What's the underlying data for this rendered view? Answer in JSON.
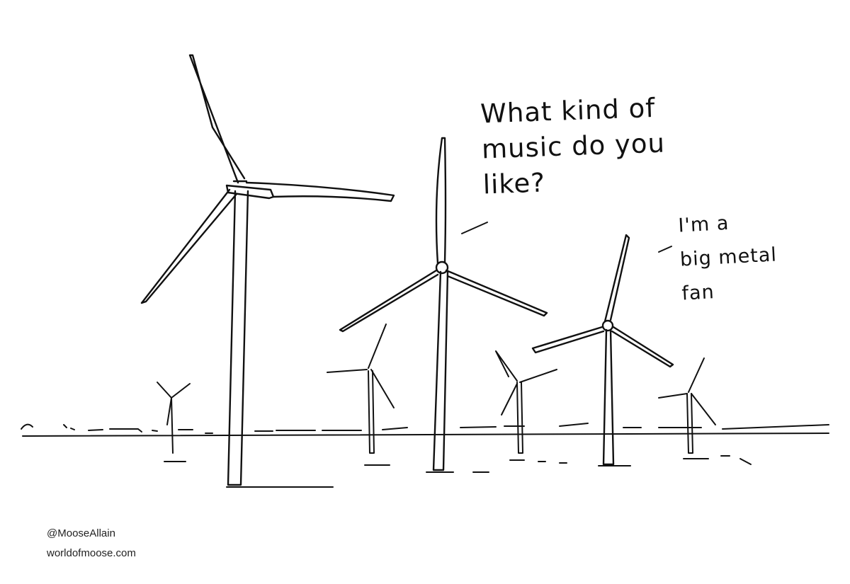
{
  "speech": {
    "question": "What kind of\nmusic do you\nlike?",
    "answer": "I'm a\nbig metal\nfan"
  },
  "credits": {
    "handle": "@MooseAllain",
    "website": "worldofmoose.com"
  },
  "colors": {
    "ink": "#111111",
    "paper": "#ffffff"
  }
}
